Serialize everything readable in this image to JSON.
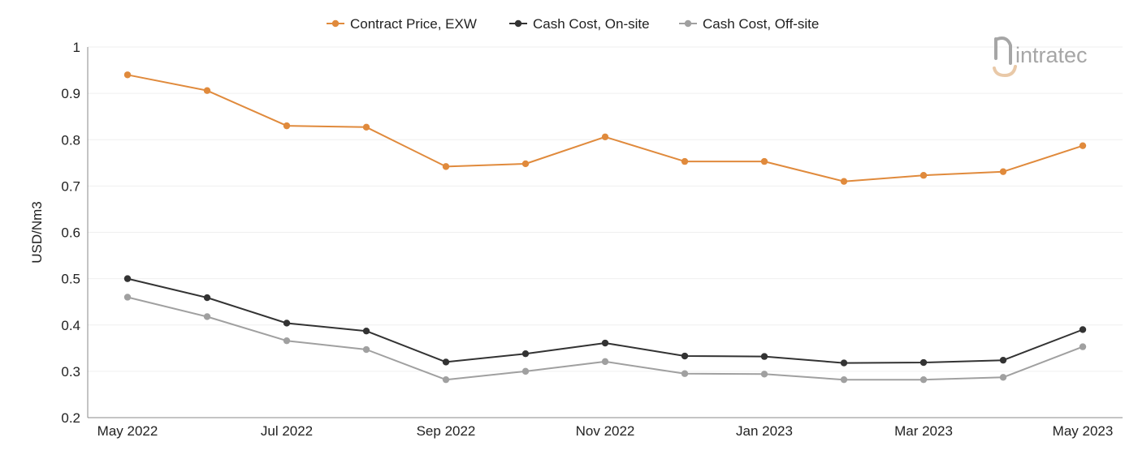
{
  "logo": {
    "brand": "intratec"
  },
  "chart_data": {
    "type": "line",
    "title": "",
    "xlabel": "",
    "ylabel": "USD/Nm3",
    "ylim": [
      0.2,
      1
    ],
    "yticks": [
      "0.2",
      "0.3",
      "0.4",
      "0.5",
      "0.6",
      "0.7",
      "0.8",
      "0.9",
      "1"
    ],
    "categories": [
      "May 2022",
      "Jun 2022",
      "Jul 2022",
      "Aug 2022",
      "Sep 2022",
      "Oct 2022",
      "Nov 2022",
      "Dec 2022",
      "Jan 2023",
      "Feb 2023",
      "Mar 2023",
      "Apr 2023",
      "May 2023"
    ],
    "x_tick_labels": [
      "May 2022",
      "",
      "Jul 2022",
      "",
      "Sep 2022",
      "",
      "Nov 2022",
      "",
      "Jan 2023",
      "",
      "Mar 2023",
      "",
      "May 2023"
    ],
    "grid": true,
    "legend_position": "top-center",
    "series": [
      {
        "name": "Contract Price, EXW",
        "color": "#e08a3c",
        "values": [
          0.94,
          0.906,
          0.83,
          0.827,
          0.742,
          0.748,
          0.806,
          0.753,
          0.753,
          0.71,
          0.723,
          0.731,
          0.787
        ]
      },
      {
        "name": "Cash Cost, On-site",
        "color": "#333333",
        "values": [
          0.5,
          0.459,
          0.404,
          0.387,
          0.32,
          0.338,
          0.361,
          0.333,
          0.332,
          0.318,
          0.319,
          0.324,
          0.39
        ]
      },
      {
        "name": "Cash Cost, Off-site",
        "color": "#a0a0a0",
        "values": [
          0.46,
          0.418,
          0.366,
          0.347,
          0.282,
          0.3,
          0.321,
          0.295,
          0.294,
          0.282,
          0.282,
          0.287,
          0.353
        ]
      }
    ]
  }
}
